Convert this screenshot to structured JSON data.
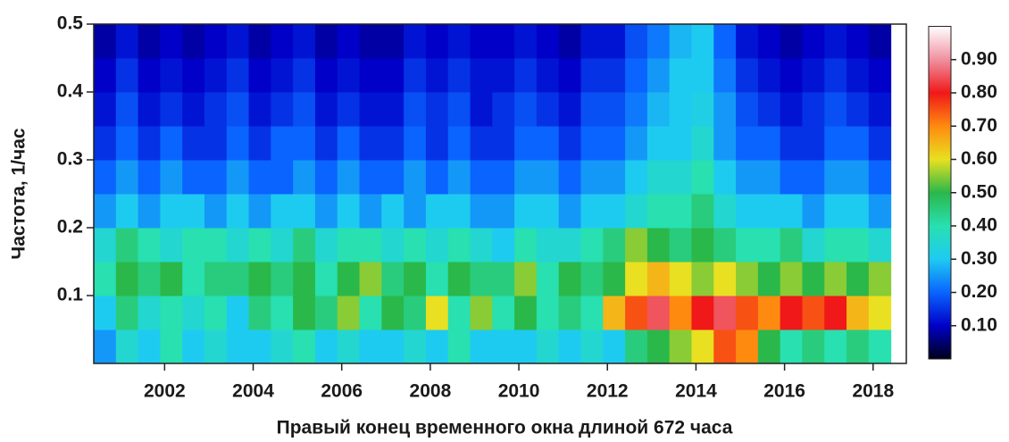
{
  "chart_data": {
    "type": "heatmap",
    "xlabel": "Правый конец временного окна длиной 672 часа",
    "ylabel": "Частота, 1/час",
    "x": [
      2000.65,
      2001.15,
      2001.65,
      2002.15,
      2002.65,
      2003.15,
      2003.65,
      2004.15,
      2004.65,
      2005.15,
      2005.65,
      2006.15,
      2006.65,
      2007.15,
      2007.65,
      2008.15,
      2008.65,
      2009.15,
      2009.65,
      2010.15,
      2010.65,
      2011.15,
      2011.65,
      2012.15,
      2012.65,
      2013.15,
      2013.65,
      2014.15,
      2014.65,
      2015.15,
      2015.65,
      2016.15,
      2016.65,
      2017.15,
      2017.65,
      2018.15
    ],
    "y": [
      0.025,
      0.075,
      0.125,
      0.175,
      0.225,
      0.275,
      0.325,
      0.375,
      0.425,
      0.475
    ],
    "z": [
      [
        0.25,
        0.35,
        0.3,
        0.4,
        0.3,
        0.35,
        0.3,
        0.3,
        0.35,
        0.4,
        0.3,
        0.35,
        0.3,
        0.3,
        0.35,
        0.3,
        0.4,
        0.3,
        0.3,
        0.3,
        0.35,
        0.3,
        0.35,
        0.3,
        0.45,
        0.5,
        0.55,
        0.6,
        0.75,
        0.7,
        0.5,
        0.4,
        0.45,
        0.4,
        0.45,
        0.4
      ],
      [
        0.3,
        0.45,
        0.35,
        0.4,
        0.35,
        0.4,
        0.3,
        0.45,
        0.4,
        0.5,
        0.45,
        0.55,
        0.4,
        0.5,
        0.45,
        0.6,
        0.4,
        0.55,
        0.4,
        0.5,
        0.4,
        0.45,
        0.4,
        0.65,
        0.75,
        0.85,
        0.7,
        0.8,
        0.85,
        0.75,
        0.7,
        0.8,
        0.75,
        0.8,
        0.65,
        0.6
      ],
      [
        0.4,
        0.5,
        0.45,
        0.5,
        0.4,
        0.45,
        0.45,
        0.5,
        0.45,
        0.5,
        0.4,
        0.5,
        0.55,
        0.45,
        0.5,
        0.4,
        0.5,
        0.45,
        0.45,
        0.55,
        0.4,
        0.5,
        0.45,
        0.5,
        0.6,
        0.65,
        0.6,
        0.55,
        0.6,
        0.55,
        0.5,
        0.55,
        0.5,
        0.55,
        0.5,
        0.55
      ],
      [
        0.35,
        0.45,
        0.4,
        0.35,
        0.4,
        0.4,
        0.35,
        0.4,
        0.35,
        0.45,
        0.35,
        0.4,
        0.4,
        0.35,
        0.4,
        0.35,
        0.4,
        0.35,
        0.3,
        0.4,
        0.35,
        0.35,
        0.4,
        0.45,
        0.55,
        0.5,
        0.45,
        0.5,
        0.45,
        0.4,
        0.4,
        0.45,
        0.35,
        0.4,
        0.4,
        0.35
      ],
      [
        0.25,
        0.3,
        0.25,
        0.3,
        0.3,
        0.25,
        0.3,
        0.25,
        0.3,
        0.3,
        0.25,
        0.3,
        0.25,
        0.3,
        0.25,
        0.3,
        0.3,
        0.25,
        0.25,
        0.3,
        0.3,
        0.25,
        0.3,
        0.3,
        0.35,
        0.4,
        0.4,
        0.45,
        0.35,
        0.3,
        0.3,
        0.3,
        0.25,
        0.3,
        0.3,
        0.25
      ],
      [
        0.2,
        0.25,
        0.2,
        0.25,
        0.2,
        0.2,
        0.25,
        0.2,
        0.2,
        0.25,
        0.2,
        0.25,
        0.2,
        0.2,
        0.25,
        0.2,
        0.25,
        0.2,
        0.2,
        0.25,
        0.25,
        0.2,
        0.25,
        0.25,
        0.3,
        0.35,
        0.35,
        0.4,
        0.3,
        0.25,
        0.25,
        0.2,
        0.2,
        0.25,
        0.25,
        0.2
      ],
      [
        0.15,
        0.2,
        0.15,
        0.2,
        0.15,
        0.15,
        0.2,
        0.15,
        0.2,
        0.2,
        0.15,
        0.2,
        0.15,
        0.15,
        0.2,
        0.15,
        0.2,
        0.15,
        0.15,
        0.2,
        0.2,
        0.15,
        0.2,
        0.2,
        0.25,
        0.3,
        0.3,
        0.35,
        0.25,
        0.2,
        0.2,
        0.15,
        0.15,
        0.2,
        0.2,
        0.15
      ],
      [
        0.12,
        0.18,
        0.12,
        0.15,
        0.12,
        0.15,
        0.18,
        0.12,
        0.15,
        0.18,
        0.12,
        0.15,
        0.12,
        0.12,
        0.18,
        0.15,
        0.18,
        0.12,
        0.15,
        0.18,
        0.15,
        0.12,
        0.18,
        0.18,
        0.22,
        0.28,
        0.3,
        0.32,
        0.25,
        0.18,
        0.15,
        0.12,
        0.15,
        0.18,
        0.15,
        0.12
      ],
      [
        0.1,
        0.15,
        0.1,
        0.12,
        0.1,
        0.12,
        0.15,
        0.1,
        0.12,
        0.15,
        0.1,
        0.12,
        0.1,
        0.1,
        0.15,
        0.12,
        0.15,
        0.12,
        0.12,
        0.15,
        0.12,
        0.1,
        0.15,
        0.15,
        0.2,
        0.25,
        0.3,
        0.3,
        0.22,
        0.15,
        0.12,
        0.1,
        0.12,
        0.15,
        0.12,
        0.1
      ],
      [
        0.08,
        0.12,
        0.08,
        0.1,
        0.08,
        0.1,
        0.12,
        0.08,
        0.1,
        0.12,
        0.08,
        0.1,
        0.08,
        0.08,
        0.12,
        0.1,
        0.12,
        0.1,
        0.1,
        0.12,
        0.1,
        0.08,
        0.12,
        0.12,
        0.18,
        0.22,
        0.28,
        0.3,
        0.2,
        0.12,
        0.1,
        0.08,
        0.1,
        0.12,
        0.1,
        0.08
      ]
    ],
    "xlim": [
      2000.4,
      2018.75
    ],
    "xticks": [
      2002,
      2004,
      2006,
      2008,
      2010,
      2012,
      2014,
      2016,
      2018
    ],
    "ylim": [
      0,
      0.5
    ],
    "yticks": [
      0.1,
      0.2,
      0.3,
      0.4,
      0.5
    ],
    "clim": [
      0,
      1
    ],
    "cticks": [
      {
        "value": 0.1,
        "label": "0.10"
      },
      {
        "value": 0.2,
        "label": "0.20"
      },
      {
        "value": 0.3,
        "label": "0.30"
      },
      {
        "value": 0.4,
        "label": "0.40"
      },
      {
        "value": 0.5,
        "label": "0.50"
      },
      {
        "value": 0.6,
        "label": "0.60"
      },
      {
        "value": 0.7,
        "label": "0.70"
      },
      {
        "value": 0.8,
        "label": "0.80"
      },
      {
        "value": 0.9,
        "label": "0.90"
      }
    ],
    "colormap": [
      "#00001a",
      "#0000c8",
      "#0a64ff",
      "#1ecbf0",
      "#28e0b0",
      "#2ab84a",
      "#e8e020",
      "#ff8a10",
      "#f01818",
      "#f090a0",
      "#ffffff"
    ]
  }
}
